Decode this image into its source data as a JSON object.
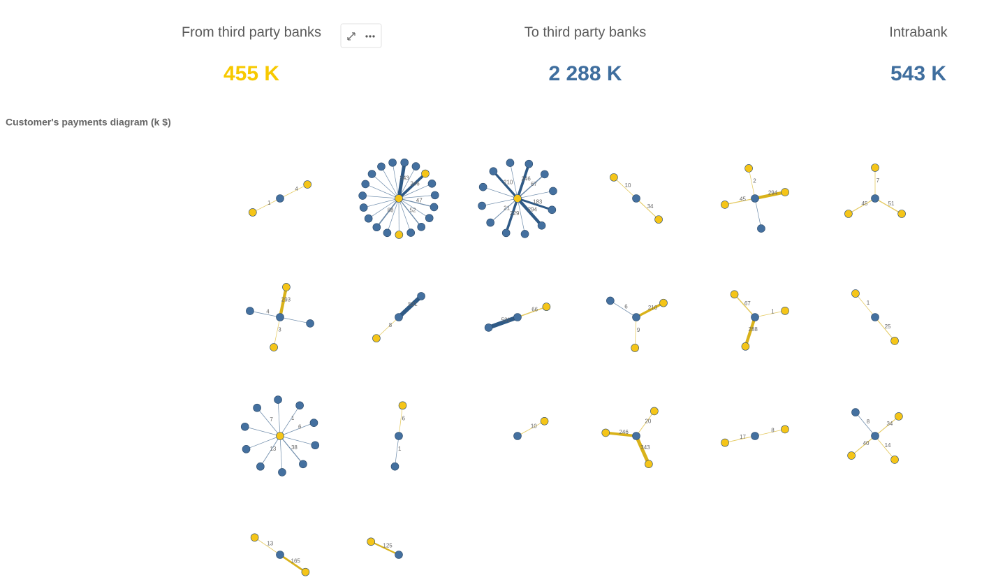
{
  "kpis": [
    {
      "title": "From third party banks",
      "value": "455 K",
      "color": "#f7c900"
    },
    {
      "title": "To third party banks",
      "value": "2 288 K",
      "color": "#3f6e9e"
    },
    {
      "title": "Intrabank",
      "value": "543 K",
      "color": "#3f6e9e"
    }
  ],
  "diagram": {
    "title": "Customer's payments diagram (k $)",
    "colors": {
      "blue": "#44709f",
      "yellow": "#f5c518"
    },
    "graphs": [
      {
        "hub": "blue",
        "edges": [
          {
            "node": "yellow",
            "value": 4
          },
          {
            "node": "yellow",
            "value": 1
          }
        ]
      },
      {
        "hub": "yellow",
        "edges": [
          {
            "node": "blue",
            "value": 343
          },
          {
            "node": "blue"
          },
          {
            "node": "yellow",
            "value": 246
          },
          {
            "node": "blue"
          },
          {
            "node": "blue"
          },
          {
            "node": "blue",
            "value": 47
          },
          {
            "node": "blue"
          },
          {
            "node": "blue",
            "value": 52
          },
          {
            "node": "blue"
          },
          {
            "node": "yellow"
          },
          {
            "node": "blue"
          },
          {
            "node": "blue",
            "value": 88
          },
          {
            "node": "blue"
          },
          {
            "node": "blue"
          },
          {
            "node": "blue"
          },
          {
            "node": "blue"
          },
          {
            "node": "blue"
          },
          {
            "node": "blue"
          },
          {
            "node": "blue"
          }
        ]
      },
      {
        "hub": "yellow",
        "edges": [
          {
            "node": "blue",
            "value": 246
          },
          {
            "node": "blue",
            "value": 67
          },
          {
            "node": "blue"
          },
          {
            "node": "blue",
            "value": 183
          },
          {
            "node": "blue",
            "value": 294
          },
          {
            "node": "blue"
          },
          {
            "node": "blue",
            "value": 229
          },
          {
            "node": "blue",
            "value": 21
          },
          {
            "node": "blue"
          },
          {
            "node": "blue"
          },
          {
            "node": "blue",
            "value": 210
          },
          {
            "node": "blue"
          }
        ]
      },
      {
        "hub": "blue",
        "edges": [
          {
            "node": "yellow",
            "value": 34
          },
          {
            "node": "yellow",
            "value": 10
          }
        ]
      },
      {
        "hub": "blue",
        "edges": [
          {
            "node": "yellow",
            "value": 294
          },
          {
            "node": "blue"
          },
          {
            "node": "yellow",
            "value": 45
          },
          {
            "node": "yellow",
            "value": 2
          }
        ]
      },
      {
        "hub": "blue",
        "edges": [
          {
            "node": "yellow",
            "value": 51
          },
          {
            "node": "yellow",
            "value": 45
          },
          {
            "node": "yellow",
            "value": 7
          }
        ]
      },
      {
        "hub": "blue",
        "edges": [
          {
            "node": "blue"
          },
          {
            "node": "yellow",
            "value": 3
          },
          {
            "node": "blue",
            "value": 4
          },
          {
            "node": "yellow",
            "value": 293
          }
        ]
      },
      {
        "hub": "blue",
        "edges": [
          {
            "node": "yellow",
            "value": 8
          },
          {
            "node": "blue",
            "value": 531
          }
        ]
      },
      {
        "hub": "blue",
        "edges": [
          {
            "node": "blue",
            "value": 531
          },
          {
            "node": "yellow",
            "value": 66
          }
        ]
      },
      {
        "hub": "blue",
        "edges": [
          {
            "node": "yellow",
            "value": 9
          },
          {
            "node": "blue",
            "value": 6
          },
          {
            "node": "yellow",
            "value": 210
          }
        ]
      },
      {
        "hub": "blue",
        "edges": [
          {
            "node": "yellow",
            "value": 288
          },
          {
            "node": "yellow",
            "value": 67
          },
          {
            "node": "yellow",
            "value": 1
          }
        ]
      },
      {
        "hub": "blue",
        "edges": [
          {
            "node": "yellow",
            "value": 1
          },
          {
            "node": "yellow",
            "value": 25
          }
        ]
      },
      {
        "hub": "yellow",
        "edges": [
          {
            "node": "blue",
            "value": 6
          },
          {
            "node": "blue"
          },
          {
            "node": "blue",
            "value": 38
          },
          {
            "node": "blue"
          },
          {
            "node": "blue",
            "value": 13
          },
          {
            "node": "blue"
          },
          {
            "node": "blue"
          },
          {
            "node": "blue",
            "value": 7
          },
          {
            "node": "blue"
          },
          {
            "node": "blue",
            "value": 1
          }
        ]
      },
      {
        "hub": "blue",
        "edges": [
          {
            "node": "yellow",
            "value": 6
          },
          {
            "node": "blue",
            "value": 1
          }
        ]
      },
      {
        "hub": "blue",
        "edges": [
          {
            "node": "yellow",
            "value": 10
          }
        ]
      },
      {
        "hub": "blue",
        "edges": [
          {
            "node": "yellow",
            "value": 246
          },
          {
            "node": "yellow",
            "value": 20
          },
          {
            "node": "yellow",
            "value": 343
          }
        ]
      },
      {
        "hub": "blue",
        "edges": [
          {
            "node": "yellow",
            "value": 8
          },
          {
            "node": "yellow",
            "value": 17
          }
        ]
      },
      {
        "hub": "blue",
        "edges": [
          {
            "node": "yellow",
            "value": 40
          },
          {
            "node": "blue",
            "value": 8
          },
          {
            "node": "yellow",
            "value": 34
          },
          {
            "node": "yellow",
            "value": 14
          }
        ]
      },
      {
        "hub": "blue",
        "edges": [
          {
            "node": "yellow",
            "value": 165
          },
          {
            "node": "yellow",
            "value": 13
          }
        ]
      },
      {
        "hub": "blue",
        "edges": [
          {
            "node": "yellow",
            "value": 125
          }
        ]
      }
    ]
  }
}
